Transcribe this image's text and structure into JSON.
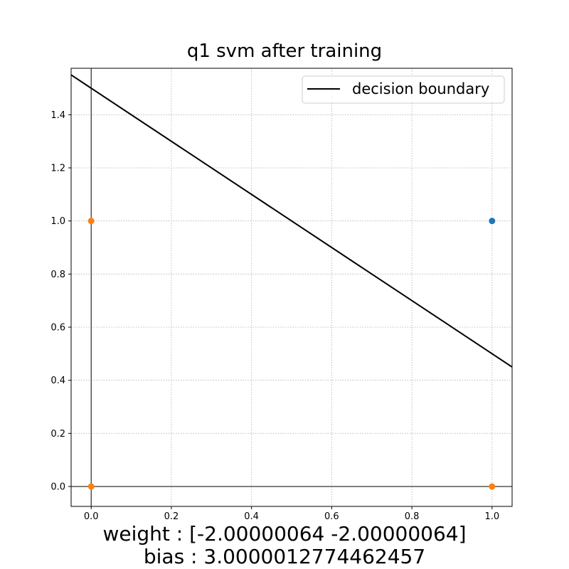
{
  "chart_data": {
    "type": "scatter",
    "title": "q1 svm after training",
    "xlabel": "",
    "ylabel": "",
    "xlim": [
      -0.05,
      1.05
    ],
    "ylim": [
      -0.075,
      1.575
    ],
    "xticks": [
      "0.0",
      "0.2",
      "0.4",
      "0.6",
      "0.8",
      "1.0"
    ],
    "xtick_values": [
      0.0,
      0.2,
      0.4,
      0.6,
      0.8,
      1.0
    ],
    "yticks": [
      "0.0",
      "0.2",
      "0.4",
      "0.6",
      "0.8",
      "1.0",
      "1.2",
      "1.4"
    ],
    "ytick_values": [
      0.0,
      0.2,
      0.4,
      0.6,
      0.8,
      1.0,
      1.2,
      1.4
    ],
    "grid": true,
    "legend_position": "top-right",
    "series": [
      {
        "color": "#1f77b4",
        "points": [
          [
            1.0,
            1.0
          ]
        ]
      },
      {
        "color": "#ff7f0e",
        "points": [
          [
            0.0,
            1.0
          ],
          [
            0.0,
            0.0
          ],
          [
            1.0,
            0.0
          ]
        ]
      }
    ],
    "lines": [
      {
        "name": "decision boundary",
        "color": "#000000",
        "points": [
          [
            -0.05,
            1.55
          ],
          [
            1.05,
            0.45
          ]
        ]
      }
    ],
    "reference_lines": {
      "x": 0.0,
      "y": 0.0,
      "color": "#000000"
    },
    "caption": [
      "weight : [-2.00000064 -2.00000064]",
      "bias : 3.0000012774462457"
    ]
  }
}
